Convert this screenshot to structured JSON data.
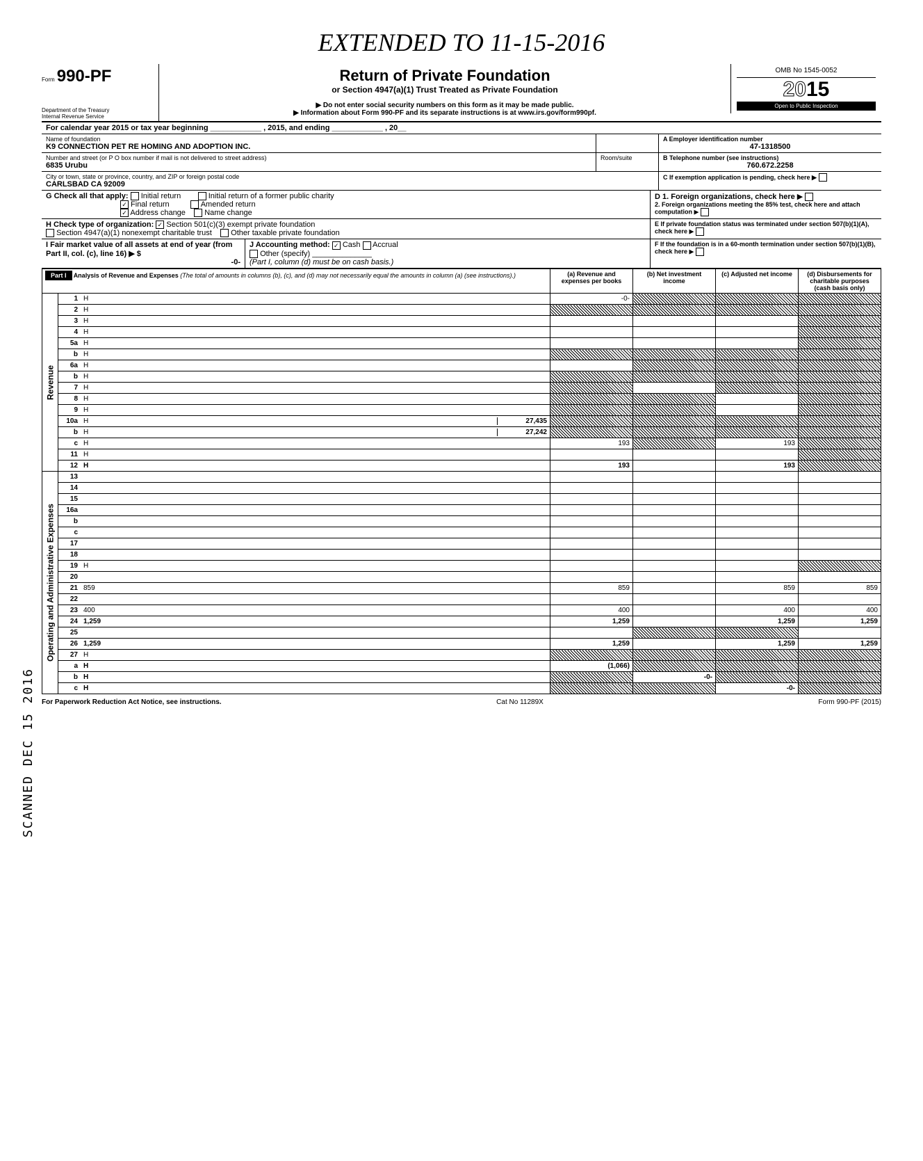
{
  "handwritten_top": "EXTENDED TO 11-15-2016",
  "form": {
    "prefix": "Form",
    "number": "990-PF",
    "dept1": "Department of the Treasury",
    "dept2": "Internal Revenue Service"
  },
  "header": {
    "title": "Return of Private Foundation",
    "subtitle": "or Section 4947(a)(1) Trust Treated as Private Foundation",
    "note1": "▶ Do not enter social security numbers on this form as it may be made public.",
    "note2": "▶ Information about Form 990-PF and its separate instructions is at www.irs.gov/form990pf.",
    "omb": "OMB No 1545-0052",
    "year": "2015",
    "inspection": "Open to Public Inspection"
  },
  "calendar_line": "For calendar year 2015 or tax year beginning ____________ , 2015, and ending ____________ , 20__",
  "foundation": {
    "name_label": "Name of foundation",
    "name": "K9 CONNECTION PET RE HOMING AND ADOPTION INC.",
    "street_label": "Number and street (or P O box number if mail is not delivered to street address)",
    "street": "6835 Urubu",
    "room_label": "Room/suite",
    "city_label": "City or town, state or province, country, and ZIP or foreign postal code",
    "city": "CARLSBAD CA 92009",
    "ein_label": "A  Employer identification number",
    "ein": "47-1318500",
    "phone_label": "B  Telephone number (see instructions)",
    "phone": "760.672.2258",
    "c_label": "C  If exemption application is pending, check here ▶"
  },
  "G": {
    "label": "G  Check all that apply:",
    "initial": "Initial return",
    "final": "Final return",
    "address_change": "Address change",
    "initial_former": "Initial return of a former public charity",
    "amended": "Amended return",
    "name_change": "Name change"
  },
  "D": {
    "d1": "D  1. Foreign organizations, check here",
    "d2": "2. Foreign organizations meeting the 85% test, check here and attach computation"
  },
  "H": {
    "label": "H  Check type of organization:",
    "opt1": "Section 501(c)(3) exempt private foundation",
    "opt2": "Section 4947(a)(1) nonexempt charitable trust",
    "opt3": "Other taxable private foundation"
  },
  "E": "E  If private foundation status was terminated under section 507(b)(1)(A), check here",
  "I": {
    "label": "I  Fair market value of all assets at end of year (from Part II, col. (c), line 16) ▶ $",
    "value": "-0-"
  },
  "J": {
    "label": "J  Accounting method:",
    "cash": "Cash",
    "accrual": "Accrual",
    "other": "Other (specify)",
    "note": "(Part I, column (d) must be on cash basis.)"
  },
  "F": "F  If the foundation is in a 60-month termination under section 507(b)(1)(B), check here",
  "part1": {
    "label": "Part I",
    "title": "Analysis of Revenue and Expenses",
    "desc": "(The total of amounts in columns (b), (c), and (d) may not necessarily equal the amounts in column (a) (see instructions).)",
    "col_a": "(a) Revenue and expenses per books",
    "col_b": "(b) Net investment income",
    "col_c": "(c) Adjusted net income",
    "col_d": "(d) Disbursements for charitable purposes (cash basis only)"
  },
  "revenue_label": "Revenue",
  "expenses_label": "Operating and Administrative Expenses",
  "stamp": "SCANNED DEC 15 2016",
  "rows": [
    {
      "n": "1",
      "d": "H",
      "a": "-0-",
      "b": "H",
      "c": "H"
    },
    {
      "n": "2",
      "d": "H",
      "a": "H",
      "b": "H",
      "c": "H"
    },
    {
      "n": "3",
      "d": "H",
      "a": "",
      "b": "",
      "c": ""
    },
    {
      "n": "4",
      "d": "H",
      "a": "",
      "b": "",
      "c": ""
    },
    {
      "n": "5a",
      "d": "H",
      "a": "",
      "b": "",
      "c": ""
    },
    {
      "n": "b",
      "d": "H",
      "a": "H",
      "b": "H",
      "c": "H"
    },
    {
      "n": "6a",
      "d": "H",
      "a": "",
      "b": "H",
      "c": "H"
    },
    {
      "n": "b",
      "d": "H",
      "a": "H",
      "b": "H",
      "c": "H"
    },
    {
      "n": "7",
      "d": "H",
      "a": "H",
      "b": "",
      "c": "H"
    },
    {
      "n": "8",
      "d": "H",
      "a": "H",
      "b": "H",
      "c": ""
    },
    {
      "n": "9",
      "d": "H",
      "a": "H",
      "b": "H",
      "c": ""
    },
    {
      "n": "10a",
      "d": "H",
      "a": "27,435",
      "aH": false,
      "b": "H",
      "c": "H",
      "inline": true
    },
    {
      "n": "b",
      "d": "H",
      "a": "27,242",
      "aH": false,
      "b": "H",
      "c": "H",
      "inline": true
    },
    {
      "n": "c",
      "d": "H",
      "a": "193",
      "b": "H",
      "c": "193"
    },
    {
      "n": "11",
      "d": "H",
      "a": "",
      "b": "",
      "c": ""
    },
    {
      "n": "12",
      "d": "H",
      "a": "193",
      "b": "",
      "c": "193",
      "bold": true
    },
    {
      "n": "13",
      "d": "",
      "a": "",
      "b": "",
      "c": ""
    },
    {
      "n": "14",
      "d": "",
      "a": "",
      "b": "",
      "c": ""
    },
    {
      "n": "15",
      "d": "",
      "a": "",
      "b": "",
      "c": ""
    },
    {
      "n": "16a",
      "d": "",
      "a": "",
      "b": "",
      "c": ""
    },
    {
      "n": "b",
      "d": "",
      "a": "",
      "b": "",
      "c": ""
    },
    {
      "n": "c",
      "d": "",
      "a": "",
      "b": "",
      "c": ""
    },
    {
      "n": "17",
      "d": "",
      "a": "",
      "b": "",
      "c": ""
    },
    {
      "n": "18",
      "d": "",
      "a": "",
      "b": "",
      "c": ""
    },
    {
      "n": "19",
      "d": "H",
      "a": "",
      "b": "",
      "c": ""
    },
    {
      "n": "20",
      "d": "",
      "a": "",
      "b": "",
      "c": ""
    },
    {
      "n": "21",
      "d": "859",
      "a": "859",
      "b": "",
      "c": "859"
    },
    {
      "n": "22",
      "d": "",
      "a": "",
      "b": "",
      "c": ""
    },
    {
      "n": "23",
      "d": "400",
      "a": "400",
      "b": "",
      "c": "400"
    },
    {
      "n": "24",
      "d": "1,259",
      "a": "1,259",
      "b": "",
      "c": "1,259",
      "bold": true
    },
    {
      "n": "25",
      "d": "",
      "a": "",
      "b": "H",
      "c": "H"
    },
    {
      "n": "26",
      "d": "1,259",
      "a": "1,259",
      "b": "",
      "c": "1,259",
      "bold": true
    },
    {
      "n": "27",
      "d": "H",
      "a": "H",
      "b": "H",
      "c": "H"
    },
    {
      "n": "a",
      "d": "H",
      "a": "(1,066)",
      "b": "H",
      "c": "H",
      "bold": true
    },
    {
      "n": "b",
      "d": "H",
      "a": "H",
      "b": "-0-",
      "c": "H",
      "bold": true
    },
    {
      "n": "c",
      "d": "H",
      "a": "H",
      "b": "H",
      "c": "-0-",
      "bold": true
    }
  ],
  "footer": {
    "left": "For Paperwork Reduction Act Notice, see instructions.",
    "mid": "Cat No 11289X",
    "right": "Form 990-PF (2015)"
  }
}
